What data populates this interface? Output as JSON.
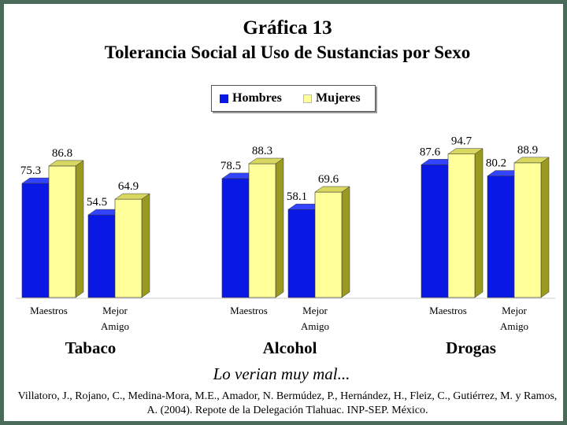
{
  "title": "Gráfica 13",
  "subtitle": "Tolerancia Social al Uso de Sustancias por Sexo",
  "footer_note": "Lo verian muy mal...",
  "source": "Villatoro, J., Rojano, C., Medina-Mora, M.E., Amador, N. Bermúdez, P., Hernández, H., Fleiz, C., Gutiérrez, M. y Ramos, A. (2004). Repote de la Delegación Tlahuac. INP-SEP. México.",
  "legend": [
    {
      "name": "Hombres",
      "color": "#0a18e6"
    },
    {
      "name": "Mujeres",
      "color": "#ffff99"
    }
  ],
  "chart_data": {
    "type": "bar",
    "ylim": [
      0,
      100
    ],
    "grid": false,
    "legend_position": "top-center",
    "series": [
      {
        "name": "Hombres",
        "color": "#0a18e6"
      },
      {
        "name": "Mujeres",
        "color": "#ffff99"
      }
    ],
    "groups": [
      {
        "name": "Tabaco",
        "categories": [
          {
            "label": [
              "Maestros"
            ],
            "values": [
              75.3,
              86.8
            ]
          },
          {
            "label": [
              "Mejor",
              "Amigo"
            ],
            "values": [
              54.5,
              64.9
            ]
          }
        ]
      },
      {
        "name": "Alcohol",
        "categories": [
          {
            "label": [
              "Maestros"
            ],
            "values": [
              78.5,
              88.3
            ]
          },
          {
            "label": [
              "Mejor",
              "Amigo"
            ],
            "values": [
              58.1,
              69.6
            ]
          }
        ]
      },
      {
        "name": "Drogas",
        "categories": [
          {
            "label": [
              "Maestros"
            ],
            "values": [
              87.6,
              94.7
            ]
          },
          {
            "label": [
              "Mejor",
              "Amigo"
            ],
            "values": [
              80.2,
              88.9
            ]
          }
        ]
      }
    ]
  }
}
